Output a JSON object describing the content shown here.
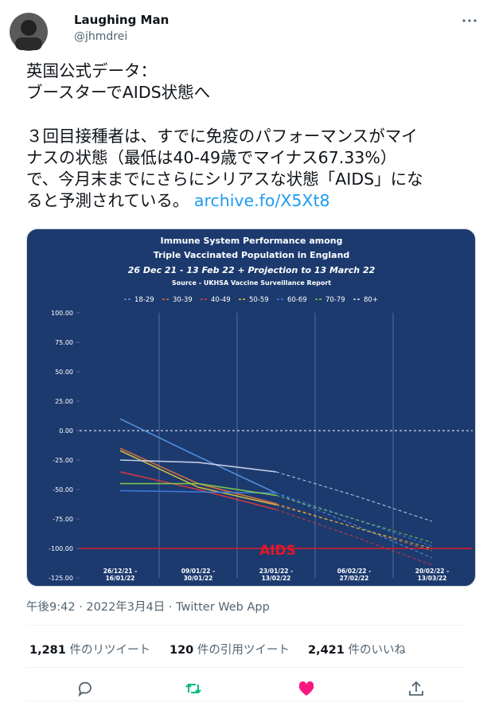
{
  "tweet": {
    "name": "Laughing Man",
    "handle": "@jhmdrei",
    "headline": [
      "英国公式データ：",
      "ブースターでAIDS状態へ"
    ],
    "body": [
      "３回目接種者は、すでに免疫のパフォーマンスがマイ",
      "ナスの状態（最低は40-49歳でマイナス67.33%）",
      "で、今月末までにさらにシリアスな状態「AIDS」にな",
      "ると予測されている。"
    ],
    "link": "archive.fo/X5Xt8",
    "timestamp": "午後9:42 · 2022年3月4日 · Twitter Web App",
    "stats": [
      {
        "count": "1,281",
        "label": "件のリツイート"
      },
      {
        "count": "120",
        "label": "件の引用ツイート"
      },
      {
        "count": "2,421",
        "label": "件のいいね"
      }
    ]
  },
  "chart": {
    "type": "line",
    "title": [
      "Immune System Performance among",
      "Triple Vaccinated Population in England"
    ],
    "subtitle": "26 Dec 21 - 13 Feb 22 + Projection to 13 March 22",
    "source": "Source - UKHSA Vaccine Surveillance Report",
    "categories": [
      "26/12/21 - 16/01/22",
      "09/01/22 - 30/01/22",
      "23/01/22 - 13/02/22",
      "06/02/22 - 27/02/22",
      "20/02/22 - 13/03/22"
    ],
    "projection_start": 2,
    "series": [
      {
        "name": "18-29",
        "color": "#5b9be8",
        "values": [
          10,
          -22,
          -53,
          -80,
          -108
        ]
      },
      {
        "name": "30-39",
        "color": "#e8743b",
        "values": [
          -15,
          -45,
          -62,
          -82,
          -102
        ]
      },
      {
        "name": "40-49",
        "color": "#e0393e",
        "values": [
          -35,
          -50,
          -67,
          -90,
          -114
        ]
      },
      {
        "name": "50-59",
        "color": "#e6c63a",
        "values": [
          -17,
          -48,
          -63,
          -82,
          -100
        ]
      },
      {
        "name": "60-69",
        "color": "#3f7fe0",
        "values": [
          -51,
          -52,
          -53,
          -75,
          -98
        ]
      },
      {
        "name": "70-79",
        "color": "#86d24c",
        "values": [
          -45,
          -45,
          -55,
          -75,
          -95
        ]
      },
      {
        "name": "80+",
        "color": "#d4dcf2",
        "values": [
          -25,
          -27,
          -35,
          -55,
          -77
        ]
      }
    ],
    "ylim": [
      -125,
      100
    ],
    "yticks": [
      {
        "value": 100,
        "label": "100.00"
      },
      {
        "value": 75,
        "label": "75.00"
      },
      {
        "value": 50,
        "label": "50.00"
      },
      {
        "value": 25,
        "label": "25.00"
      },
      {
        "value": 0,
        "label": "0.00"
      },
      {
        "value": -25,
        "label": "-25.00"
      },
      {
        "value": -50,
        "label": "-50.00"
      },
      {
        "value": -75,
        "label": "-75.00"
      },
      {
        "value": -100,
        "label": "-100.00"
      },
      {
        "value": -125,
        "label": "-125.00"
      }
    ],
    "annotation": {
      "text": "AIDS",
      "value": -100,
      "color": "#e0182a"
    }
  }
}
